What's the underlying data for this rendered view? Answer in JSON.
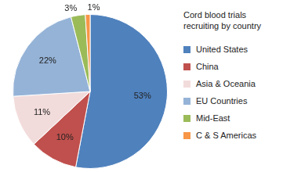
{
  "chart_data": {
    "type": "pie",
    "title": "Cord blood trials recruiting by country",
    "categories": [
      "United States",
      "China",
      "Asia & Oceania",
      "EU Countries",
      "Mid-East",
      "C & S Americas"
    ],
    "values": [
      53,
      10,
      11,
      22,
      3,
      1
    ],
    "value_labels": [
      "53%",
      "10%",
      "11%",
      "22%",
      "3%",
      "1%"
    ],
    "colors": [
      "#4f81bd",
      "#c0504d",
      "#f2dcdb",
      "#95b3d7",
      "#9bbb59",
      "#f79646"
    ],
    "data_labels": true,
    "legend": "right"
  }
}
